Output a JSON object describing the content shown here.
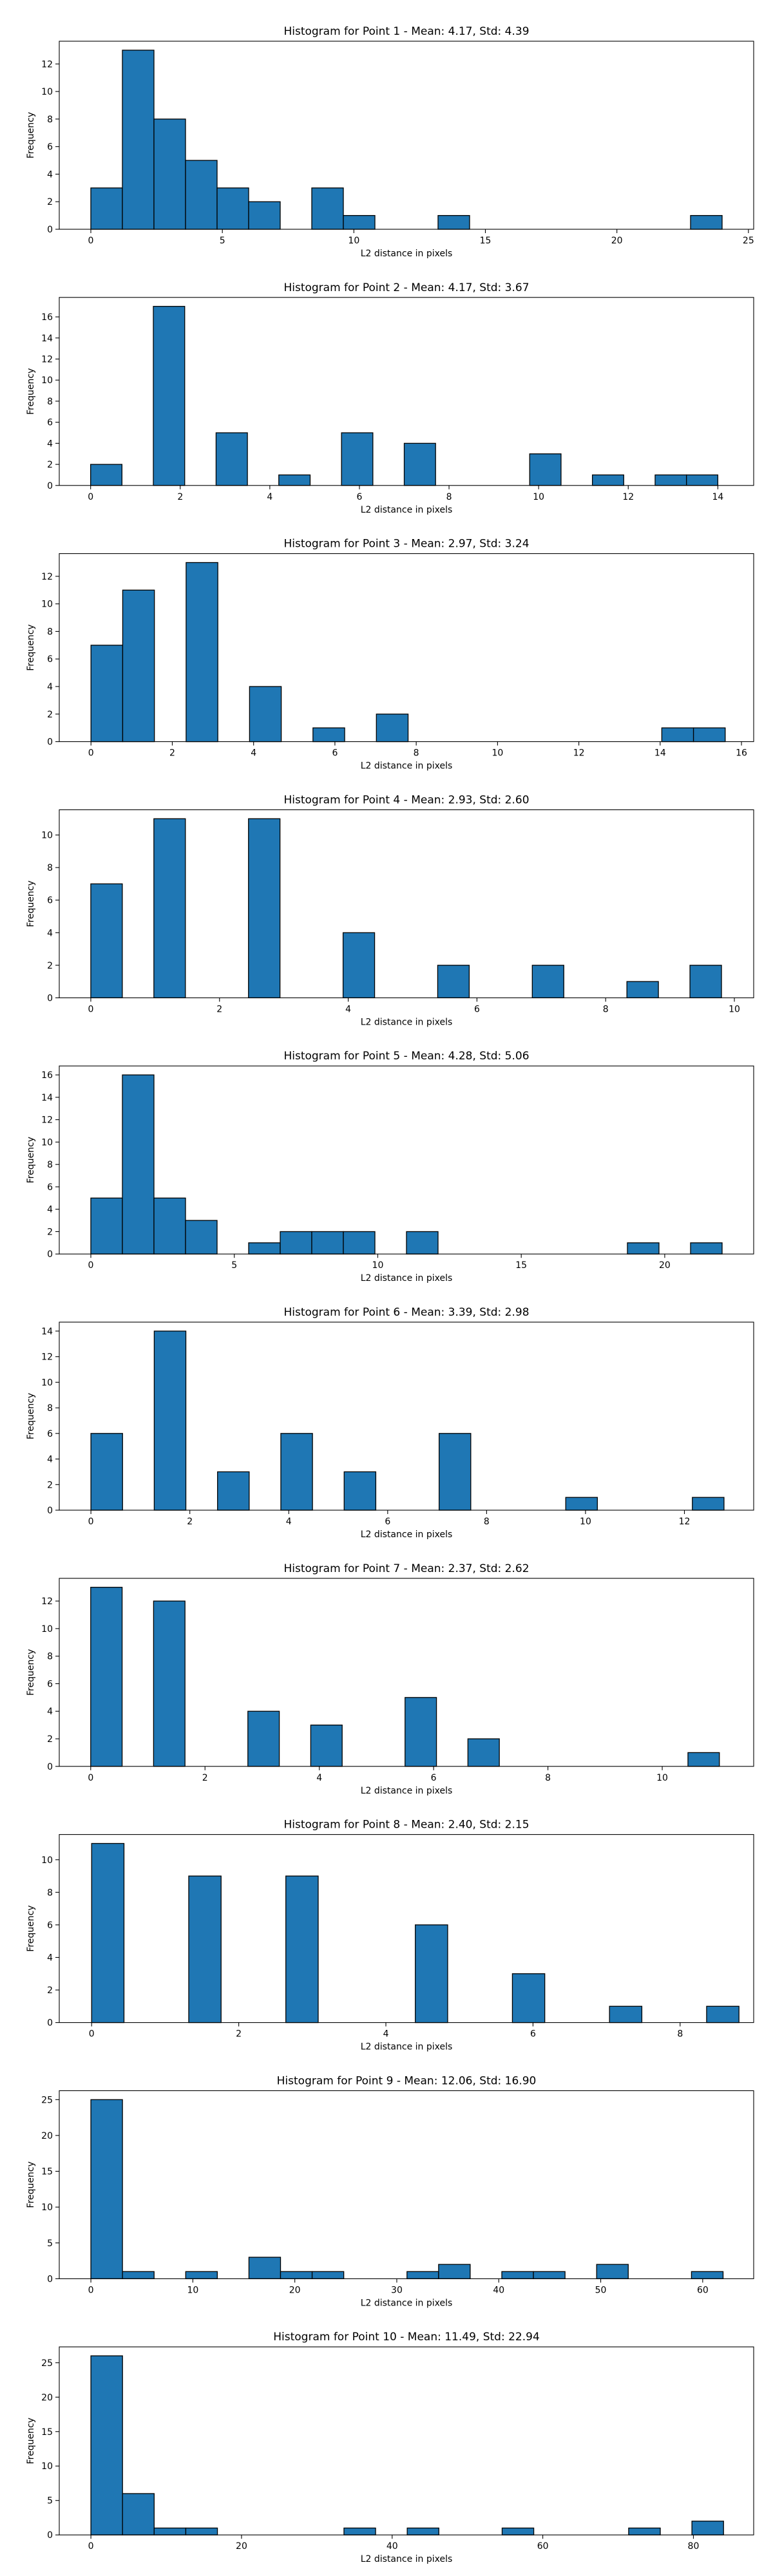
{
  "figure": {
    "bar_color": "#1f77b4",
    "bar_edge_color": "#000000",
    "background": "#ffffff"
  },
  "chart_data": [
    {
      "type": "bar",
      "title": "Histogram for Point 1 - Mean: 4.17, Std: 4.39",
      "xlabel": "L2 distance in pixels",
      "ylabel": "Frequency",
      "xlim": [
        -1.2,
        25.2
      ],
      "ylim": [
        0,
        13.65
      ],
      "xticks": [
        0,
        5,
        10,
        15,
        20,
        25
      ],
      "yticks": [
        0,
        2,
        4,
        6,
        8,
        10,
        12
      ],
      "bins": [
        {
          "x0": 0.0,
          "x1": 1.2,
          "count": 3
        },
        {
          "x0": 1.2,
          "x1": 2.4,
          "count": 13
        },
        {
          "x0": 2.4,
          "x1": 3.6,
          "count": 8
        },
        {
          "x0": 3.6,
          "x1": 4.8,
          "count": 5
        },
        {
          "x0": 4.8,
          "x1": 6.0,
          "count": 3
        },
        {
          "x0": 6.0,
          "x1": 7.2,
          "count": 2
        },
        {
          "x0": 8.4,
          "x1": 9.6,
          "count": 3
        },
        {
          "x0": 9.6,
          "x1": 10.8,
          "count": 1
        },
        {
          "x0": 13.2,
          "x1": 14.4,
          "count": 1
        },
        {
          "x0": 22.8,
          "x1": 24.0,
          "count": 1
        }
      ]
    },
    {
      "type": "bar",
      "title": "Histogram for Point 2 - Mean: 4.17, Std: 3.67",
      "xlabel": "L2 distance in pixels",
      "ylabel": "Frequency",
      "xlim": [
        -0.7,
        14.8
      ],
      "ylim": [
        0,
        17.85
      ],
      "xticks": [
        0,
        2,
        4,
        6,
        8,
        10,
        12,
        14
      ],
      "yticks": [
        0,
        2,
        4,
        6,
        8,
        10,
        12,
        14,
        16
      ],
      "bins": [
        {
          "x0": 0.0,
          "x1": 0.7,
          "count": 2
        },
        {
          "x0": 1.4,
          "x1": 2.1,
          "count": 17
        },
        {
          "x0": 2.8,
          "x1": 3.5,
          "count": 5
        },
        {
          "x0": 4.2,
          "x1": 4.9,
          "count": 1
        },
        {
          "x0": 5.6,
          "x1": 6.3,
          "count": 5
        },
        {
          "x0": 7.0,
          "x1": 7.7,
          "count": 4
        },
        {
          "x0": 9.8,
          "x1": 10.5,
          "count": 3
        },
        {
          "x0": 11.2,
          "x1": 11.9,
          "count": 1
        },
        {
          "x0": 12.6,
          "x1": 13.3,
          "count": 1
        },
        {
          "x0": 13.3,
          "x1": 14.0,
          "count": 1
        }
      ]
    },
    {
      "type": "bar",
      "title": "Histogram for Point 3 - Mean: 2.97, Std: 3.24",
      "xlabel": "L2 distance in pixels",
      "ylabel": "Frequency",
      "xlim": [
        -0.78,
        16.3
      ],
      "ylim": [
        0,
        13.65
      ],
      "xticks": [
        0,
        2,
        4,
        6,
        8,
        10,
        12,
        14,
        16
      ],
      "yticks": [
        0,
        2,
        4,
        6,
        8,
        10,
        12
      ],
      "bins": [
        {
          "x0": 0.0,
          "x1": 0.78,
          "count": 7
        },
        {
          "x0": 0.78,
          "x1": 1.56,
          "count": 11
        },
        {
          "x0": 2.34,
          "x1": 3.12,
          "count": 13
        },
        {
          "x0": 3.9,
          "x1": 4.68,
          "count": 4
        },
        {
          "x0": 5.46,
          "x1": 6.24,
          "count": 1
        },
        {
          "x0": 7.02,
          "x1": 7.8,
          "count": 2
        },
        {
          "x0": 14.04,
          "x1": 14.82,
          "count": 1
        },
        {
          "x0": 14.82,
          "x1": 15.6,
          "count": 1
        }
      ]
    },
    {
      "type": "bar",
      "title": "Histogram for Point 4 - Mean: 2.93, Std: 2.60",
      "xlabel": "L2 distance in pixels",
      "ylabel": "Frequency",
      "xlim": [
        -0.49,
        10.3
      ],
      "ylim": [
        0,
        11.55
      ],
      "xticks": [
        0,
        2,
        4,
        6,
        8,
        10
      ],
      "yticks": [
        0,
        2,
        4,
        6,
        8,
        10
      ],
      "bins": [
        {
          "x0": 0.0,
          "x1": 0.49,
          "count": 7
        },
        {
          "x0": 0.98,
          "x1": 1.47,
          "count": 11
        },
        {
          "x0": 2.45,
          "x1": 2.94,
          "count": 11
        },
        {
          "x0": 3.92,
          "x1": 4.41,
          "count": 4
        },
        {
          "x0": 5.39,
          "x1": 5.88,
          "count": 2
        },
        {
          "x0": 6.86,
          "x1": 7.35,
          "count": 2
        },
        {
          "x0": 8.33,
          "x1": 8.82,
          "count": 1
        },
        {
          "x0": 9.31,
          "x1": 9.8,
          "count": 2
        }
      ]
    },
    {
      "type": "bar",
      "title": "Histogram for Point 5 - Mean: 4.28, Std: 5.06",
      "xlabel": "L2 distance in pixels",
      "ylabel": "Frequency",
      "xlim": [
        -1.1,
        23.1
      ],
      "ylim": [
        0,
        16.8
      ],
      "xticks": [
        0,
        5,
        10,
        15,
        20
      ],
      "yticks": [
        0,
        2,
        4,
        6,
        8,
        10,
        12,
        14,
        16
      ],
      "bins": [
        {
          "x0": 0.0,
          "x1": 1.1,
          "count": 5
        },
        {
          "x0": 1.1,
          "x1": 2.2,
          "count": 16
        },
        {
          "x0": 2.2,
          "x1": 3.3,
          "count": 5
        },
        {
          "x0": 3.3,
          "x1": 4.4,
          "count": 3
        },
        {
          "x0": 5.5,
          "x1": 6.6,
          "count": 1
        },
        {
          "x0": 6.6,
          "x1": 7.7,
          "count": 2
        },
        {
          "x0": 7.7,
          "x1": 8.8,
          "count": 2
        },
        {
          "x0": 8.8,
          "x1": 9.9,
          "count": 2
        },
        {
          "x0": 11.0,
          "x1": 12.1,
          "count": 2
        },
        {
          "x0": 18.7,
          "x1": 19.8,
          "count": 1
        },
        {
          "x0": 20.9,
          "x1": 22.0,
          "count": 1
        }
      ]
    },
    {
      "type": "bar",
      "title": "Histogram for Point 6 - Mean: 3.39, Std: 2.98",
      "xlabel": "L2 distance in pixels",
      "ylabel": "Frequency",
      "xlim": [
        -0.64,
        13.4
      ],
      "ylim": [
        0,
        14.7
      ],
      "xticks": [
        0,
        2,
        4,
        6,
        8,
        10,
        12
      ],
      "yticks": [
        0,
        2,
        4,
        6,
        8,
        10,
        12,
        14
      ],
      "bins": [
        {
          "x0": 0.0,
          "x1": 0.64,
          "count": 6
        },
        {
          "x0": 1.28,
          "x1": 1.92,
          "count": 14
        },
        {
          "x0": 2.56,
          "x1": 3.2,
          "count": 3
        },
        {
          "x0": 3.84,
          "x1": 4.48,
          "count": 6
        },
        {
          "x0": 5.12,
          "x1": 5.76,
          "count": 3
        },
        {
          "x0": 7.04,
          "x1": 7.68,
          "count": 6
        },
        {
          "x0": 9.6,
          "x1": 10.24,
          "count": 1
        },
        {
          "x0": 12.16,
          "x1": 12.8,
          "count": 1
        }
      ]
    },
    {
      "type": "bar",
      "title": "Histogram for Point 7 - Mean: 2.37, Std: 2.62",
      "xlabel": "L2 distance in pixels",
      "ylabel": "Frequency",
      "xlim": [
        -0.55,
        11.6
      ],
      "ylim": [
        0,
        13.65
      ],
      "xticks": [
        0,
        2,
        4,
        6,
        8,
        10
      ],
      "yticks": [
        0,
        2,
        4,
        6,
        8,
        10,
        12
      ],
      "bins": [
        {
          "x0": 0.0,
          "x1": 0.55,
          "count": 13
        },
        {
          "x0": 1.1,
          "x1": 1.65,
          "count": 12
        },
        {
          "x0": 2.75,
          "x1": 3.3,
          "count": 4
        },
        {
          "x0": 3.85,
          "x1": 4.4,
          "count": 3
        },
        {
          "x0": 5.5,
          "x1": 6.05,
          "count": 5
        },
        {
          "x0": 6.6,
          "x1": 7.15,
          "count": 2
        },
        {
          "x0": 10.45,
          "x1": 11.0,
          "count": 1
        }
      ]
    },
    {
      "type": "bar",
      "title": "Histogram for Point 8 - Mean: 2.40, Std: 2.15",
      "xlabel": "L2 distance in pixels",
      "ylabel": "Frequency",
      "xlim": [
        -0.44,
        9.0
      ],
      "ylim": [
        0,
        11.55
      ],
      "xticks": [
        0,
        2,
        4,
        6,
        8
      ],
      "yticks": [
        0,
        2,
        4,
        6,
        8,
        10
      ],
      "bins": [
        {
          "x0": 0.0,
          "x1": 0.44,
          "count": 11
        },
        {
          "x0": 1.32,
          "x1": 1.76,
          "count": 9
        },
        {
          "x0": 2.64,
          "x1": 3.08,
          "count": 9
        },
        {
          "x0": 4.4,
          "x1": 4.84,
          "count": 6
        },
        {
          "x0": 5.72,
          "x1": 6.16,
          "count": 3
        },
        {
          "x0": 7.04,
          "x1": 7.48,
          "count": 1
        },
        {
          "x0": 8.36,
          "x1": 8.8,
          "count": 1
        }
      ]
    },
    {
      "type": "bar",
      "title": "Histogram for Point 9 - Mean: 12.06, Std: 16.90",
      "xlabel": "L2 distance in pixels",
      "ylabel": "Frequency",
      "xlim": [
        -3.1,
        65.0
      ],
      "ylim": [
        0,
        26.25
      ],
      "xticks": [
        0,
        10,
        20,
        30,
        40,
        50,
        60
      ],
      "yticks": [
        0,
        5,
        10,
        15,
        20,
        25
      ],
      "bins": [
        {
          "x0": 0.0,
          "x1": 3.1,
          "count": 25
        },
        {
          "x0": 3.1,
          "x1": 6.2,
          "count": 1
        },
        {
          "x0": 9.3,
          "x1": 12.4,
          "count": 1
        },
        {
          "x0": 15.5,
          "x1": 18.6,
          "count": 3
        },
        {
          "x0": 18.6,
          "x1": 21.7,
          "count": 1
        },
        {
          "x0": 21.7,
          "x1": 24.8,
          "count": 1
        },
        {
          "x0": 31.0,
          "x1": 34.1,
          "count": 1
        },
        {
          "x0": 34.1,
          "x1": 37.2,
          "count": 2
        },
        {
          "x0": 40.3,
          "x1": 43.4,
          "count": 1
        },
        {
          "x0": 43.4,
          "x1": 46.5,
          "count": 1
        },
        {
          "x0": 49.6,
          "x1": 52.7,
          "count": 2
        },
        {
          "x0": 58.9,
          "x1": 62.0,
          "count": 1
        }
      ]
    },
    {
      "type": "bar",
      "title": "Histogram for Point 10 - Mean: 11.49, Std: 22.94",
      "xlabel": "L2 distance in pixels",
      "ylabel": "Frequency",
      "xlim": [
        -4.2,
        88.0
      ],
      "ylim": [
        0,
        27.3
      ],
      "xticks": [
        0,
        20,
        40,
        60,
        80
      ],
      "yticks": [
        0,
        5,
        10,
        15,
        20,
        25
      ],
      "bins": [
        {
          "x0": 0.0,
          "x1": 4.2,
          "count": 26
        },
        {
          "x0": 4.2,
          "x1": 8.4,
          "count": 6
        },
        {
          "x0": 8.4,
          "x1": 12.6,
          "count": 1
        },
        {
          "x0": 12.6,
          "x1": 16.8,
          "count": 1
        },
        {
          "x0": 33.6,
          "x1": 37.8,
          "count": 1
        },
        {
          "x0": 42.0,
          "x1": 46.2,
          "count": 1
        },
        {
          "x0": 54.6,
          "x1": 58.8,
          "count": 1
        },
        {
          "x0": 71.4,
          "x1": 75.6,
          "count": 1
        },
        {
          "x0": 79.8,
          "x1": 84.0,
          "count": 2
        }
      ]
    }
  ]
}
